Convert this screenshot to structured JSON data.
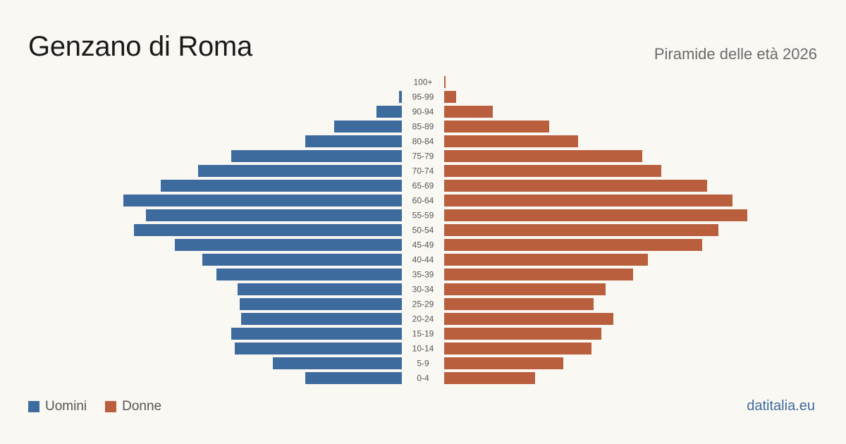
{
  "header": {
    "title": "Genzano di Roma",
    "subtitle": "Piramide delle età 2026"
  },
  "legend": {
    "men_label": "Uomini",
    "women_label": "Donne"
  },
  "footer": {
    "brand": "datitalia.eu"
  },
  "colors": {
    "men": "#3d6b9e",
    "women": "#ba5f3e"
  },
  "chart_data": {
    "type": "bar",
    "orientation": "horizontal-pyramid",
    "categories": [
      "100+",
      "95-99",
      "90-94",
      "85-89",
      "80-84",
      "75-79",
      "70-74",
      "65-69",
      "60-64",
      "55-59",
      "50-54",
      "45-49",
      "40-44",
      "35-39",
      "30-34",
      "25-29",
      "20-24",
      "15-19",
      "10-14",
      "5-9",
      "0-4"
    ],
    "series": [
      {
        "name": "Uomini",
        "values": [
          0,
          4,
          36,
          96,
          137,
          242,
          289,
          342,
          395,
          363,
          380,
          322,
          283,
          263,
          233,
          230,
          228,
          242,
          237,
          183,
          137
        ]
      },
      {
        "name": "Donne",
        "values": [
          2,
          17,
          69,
          149,
          190,
          281,
          308,
          373,
          409,
          430,
          389,
          366,
          289,
          268,
          229,
          212,
          240,
          223,
          209,
          169,
          129
        ]
      }
    ],
    "title": "Genzano di Roma",
    "subtitle": "Piramide delle età 2026",
    "xlabel": "",
    "ylabel": "",
    "xlim": [
      0,
      430
    ],
    "grid": false,
    "legend_position": "bottom-left"
  }
}
